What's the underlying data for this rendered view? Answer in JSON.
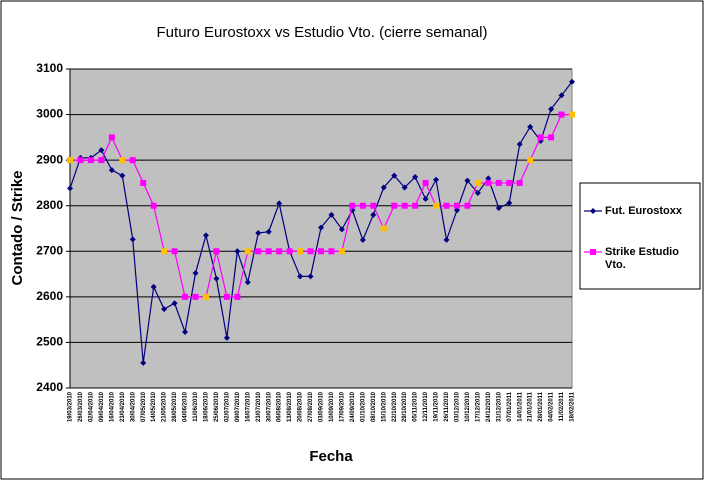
{
  "chart_data": {
    "type": "line",
    "title": "Futuro Eurostoxx vs Estudio Vto. (cierre semanal)",
    "x_label": "Fecha",
    "y_label": "Contado / Strike",
    "categories": [
      "19/03/2010",
      "26/03/2010",
      "02/04/2010",
      "09/04/2010",
      "16/04/2010",
      "23/04/2010",
      "30/04/2010",
      "07/05/2010",
      "14/05/2010",
      "21/05/2010",
      "28/05/2010",
      "04/06/2010",
      "11/06/2010",
      "18/06/2010",
      "25/06/2010",
      "02/07/2010",
      "09/07/2010",
      "16/07/2010",
      "23/07/2010",
      "30/07/2010",
      "06/08/2010",
      "13/08/2010",
      "20/08/2010",
      "27/08/2010",
      "03/09/2010",
      "10/09/2010",
      "17/09/2010",
      "24/09/2010",
      "01/10/2010",
      "08/10/2010",
      "15/10/2010",
      "22/10/2010",
      "29/10/2010",
      "05/11/2010",
      "12/11/2010",
      "19/11/2010",
      "26/11/2010",
      "03/12/2010",
      "10/12/2010",
      "17/12/2010",
      "24/12/2010",
      "31/12/2010",
      "07/01/2011",
      "14/01/2011",
      "21/01/2011",
      "28/01/2011",
      "04/02/2011",
      "11/02/2011",
      "18/02/2011"
    ],
    "series": [
      {
        "name": "Fut. Eurostoxx",
        "color": "#000080",
        "marker": "diamond",
        "values": [
          2838,
          2905,
          2905,
          2922,
          2878,
          2866,
          2726,
          2455,
          2622,
          2573,
          2586,
          2523,
          2652,
          2735,
          2640,
          2510,
          2700,
          2632,
          2740,
          2743,
          2805,
          2700,
          2645,
          2645,
          2752,
          2780,
          2748,
          2790,
          2725,
          2780,
          2840,
          2866,
          2840,
          2863,
          2815,
          2857,
          2725,
          2790,
          2855,
          2828,
          2860,
          2795,
          2806,
          2935,
          2973,
          2942,
          3012,
          3042,
          3072
        ]
      },
      {
        "name": "Strike Estudio Vto.",
        "color": "#ff00ff",
        "marker": "square",
        "values": [
          2900,
          2900,
          2900,
          2900,
          2950,
          2900,
          2900,
          2850,
          2800,
          2700,
          2700,
          2600,
          2600,
          2600,
          2700,
          2600,
          2600,
          2700,
          2700,
          2700,
          2700,
          2700,
          2700,
          2700,
          2700,
          2700,
          2700,
          2800,
          2800,
          2800,
          2750,
          2800,
          2800,
          2800,
          2850,
          2800,
          2800,
          2800,
          2800,
          2850,
          2850,
          2850,
          2850,
          2850,
          2900,
          2950,
          2950,
          3000,
          3000
        ],
        "marker_colors": [
          "#ffc000",
          "#ff00ff",
          "#ff00ff",
          "#ff00ff",
          "#ff00ff",
          "#ffc000",
          "#ff00ff",
          "#ff00ff",
          "#ff00ff",
          "#ffc000",
          "#ff00ff",
          "#ff00ff",
          "#ff00ff",
          "#ffc000",
          "#ff00ff",
          "#ff00ff",
          "#ff00ff",
          "#ffc000",
          "#ff00ff",
          "#ff00ff",
          "#ff00ff",
          "#ff00ff",
          "#ffc000",
          "#ff00ff",
          "#ff00ff",
          "#ff00ff",
          "#ffc000",
          "#ff00ff",
          "#ff00ff",
          "#ff00ff",
          "#ffc000",
          "#ff00ff",
          "#ff00ff",
          "#ff00ff",
          "#ff00ff",
          "#ffc000",
          "#ff00ff",
          "#ff00ff",
          "#ff00ff",
          "#ffc000",
          "#ff00ff",
          "#ff00ff",
          "#ff00ff",
          "#ff00ff",
          "#ffc000",
          "#ff00ff",
          "#ff00ff",
          "#ff00ff",
          "#ffc000"
        ]
      }
    ],
    "ylim": [
      2400,
      3100
    ],
    "yticks": [
      2400,
      2500,
      2600,
      2700,
      2800,
      2900,
      3000,
      3100
    ],
    "grid": true,
    "legend": "right",
    "plot_background": "#c0c0c0"
  }
}
